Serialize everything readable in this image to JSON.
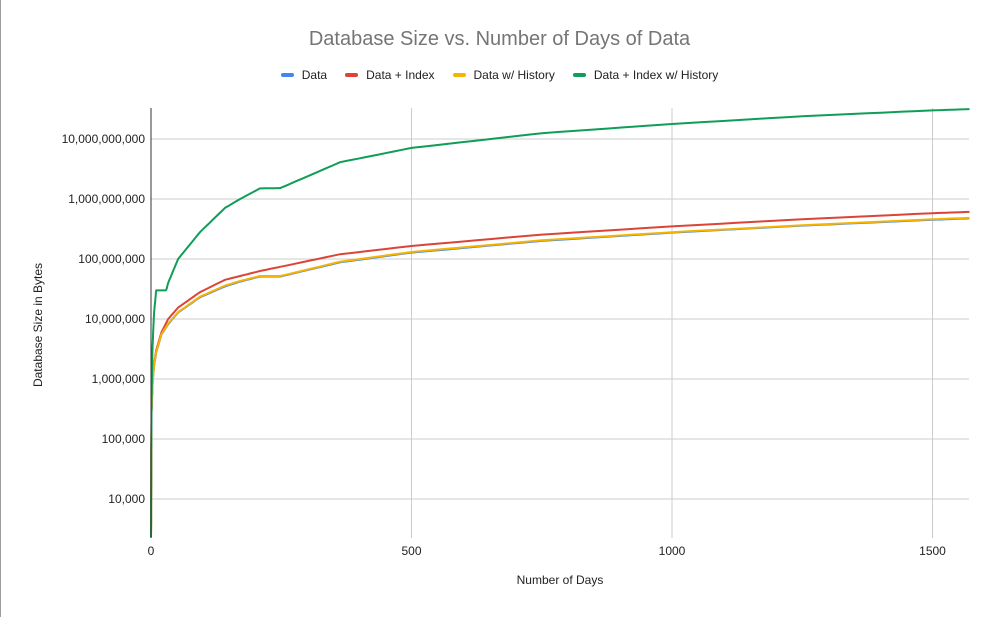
{
  "chart": {
    "title": "Database Size vs. Number of Days of Data",
    "xlabel": "Number of Days",
    "ylabel": "Database Size in Bytes"
  },
  "legend": [
    {
      "label": "Data",
      "color": "#4285f4"
    },
    {
      "label": "Data + Index",
      "color": "#db4437"
    },
    {
      "label": "Data w/ History",
      "color": "#f4b400"
    },
    {
      "label": "Data + Index w/ History",
      "color": "#0f9d58"
    }
  ],
  "chart_data": {
    "type": "line",
    "title": "Database Size vs. Number of Days of Data",
    "xlabel": "Number of Days",
    "ylabel": "Database Size in Bytes",
    "xlim": [
      0,
      1571
    ],
    "ylim": [
      2300,
      33000000000
    ],
    "yscale": "log",
    "grid": true,
    "legend_position": "top",
    "x_ticks": [
      0,
      500,
      1000,
      1500
    ],
    "y_ticks": [
      10000,
      100000,
      1000000,
      10000000,
      100000000,
      1000000000,
      10000000000
    ],
    "y_tick_labels": [
      "10,000",
      "100,000",
      "1,000,000",
      "10,000,000",
      "100,000,000",
      "1,000,000,000",
      "10,000,000,000"
    ],
    "x": [
      0,
      1,
      3,
      6,
      10,
      20,
      33,
      52,
      94,
      142,
      171,
      209,
      248,
      363,
      500,
      750,
      1000,
      1250,
      1500,
      1571
    ],
    "series": [
      {
        "name": "Data",
        "color": "#4285f4",
        "values": [
          2300,
          270000,
          820000,
          1650000,
          2750000,
          5500000,
          8200000,
          12800000,
          23000000,
          35000000,
          42000000,
          51000000,
          51000000,
          88000000,
          128000000,
          200000000,
          275000000,
          360000000,
          450000000,
          475000000
        ]
      },
      {
        "name": "Data + Index",
        "color": "#db4437",
        "values": [
          2300,
          300000,
          900000,
          1800000,
          3000000,
          6000000,
          10000000,
          15500000,
          28000000,
          45000000,
          52000000,
          63000000,
          74000000,
          120000000,
          165000000,
          255000000,
          350000000,
          460000000,
          580000000,
          610000000
        ]
      },
      {
        "name": "Data w/ History",
        "color": "#f4b400",
        "values": [
          2300,
          280000,
          840000,
          1700000,
          2800000,
          5600000,
          8400000,
          13000000,
          23500000,
          36000000,
          43000000,
          52000000,
          52000000,
          90000000,
          131000000,
          205000000,
          280000000,
          365000000,
          460000000,
          485000000
        ]
      },
      {
        "name": "Data + Index w/ History",
        "color": "#0f9d58",
        "values": [
          2300,
          400000,
          3600000,
          13000000,
          30000000,
          15000000,
          40000000,
          100000000,
          280000000,
          710000000,
          1000000000,
          1500000000,
          1520000000,
          4100000000,
          7100000000,
          12500000000,
          17800000000,
          24000000000,
          30000000000,
          31500000000
        ]
      }
    ]
  }
}
